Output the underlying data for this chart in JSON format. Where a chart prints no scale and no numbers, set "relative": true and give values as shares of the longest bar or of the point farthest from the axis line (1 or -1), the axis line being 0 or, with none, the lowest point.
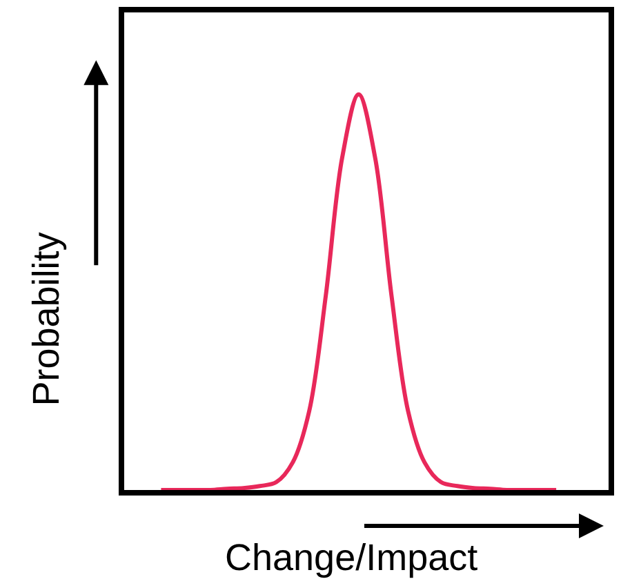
{
  "chart_data": {
    "type": "line",
    "relative": true,
    "xlabel": "Change/Impact",
    "ylabel": "Probability",
    "categories": [
      null,
      null,
      null,
      null,
      null,
      null,
      null,
      null,
      null,
      null,
      null,
      null,
      null,
      null,
      null,
      null,
      null,
      null,
      null,
      null,
      null,
      null,
      null,
      null,
      null
    ],
    "series": [
      {
        "color": "#e8285a",
        "values": [
          0,
          0,
          0,
          0,
          0.003,
          0.005,
          0.01,
          0.02,
          0.07,
          0.2,
          0.49,
          0.84,
          1,
          0.84,
          0.49,
          0.2,
          0.07,
          0.02,
          0.01,
          0.005,
          0.003,
          0,
          0,
          0,
          0
        ]
      }
    ],
    "marker": "none",
    "line_style": "solid"
  }
}
